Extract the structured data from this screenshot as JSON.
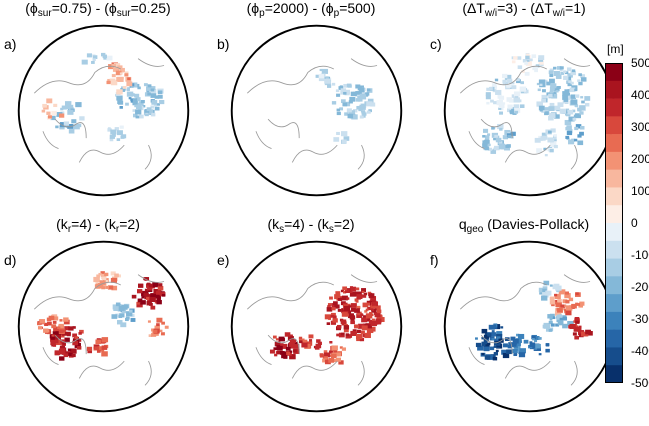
{
  "panels": [
    {
      "letter": "a)",
      "title": {
        "l1": "(ϕ",
        "s1": "sur",
        "m": "=0.75) - (ϕ",
        "s2": "sur",
        "r": "=0.25)"
      },
      "pattern": "a"
    },
    {
      "letter": "b)",
      "title": {
        "l1": "(ϕ",
        "s1": "p",
        "m": "=2000) - (ϕ",
        "s2": "p",
        "r": "=500)"
      },
      "pattern": "b"
    },
    {
      "letter": "c)",
      "title": {
        "l1": "(ΔT",
        "s1": "w/i",
        "m": "=3) - (ΔT",
        "s2": "w/i",
        "r": "=1)"
      },
      "pattern": "c"
    },
    {
      "letter": "d)",
      "title": {
        "l1": "(k",
        "s1": "r",
        "m": "=4) - (k",
        "s2": "r",
        "r": "=2)"
      },
      "pattern": "d"
    },
    {
      "letter": "e)",
      "title": {
        "l1": "(k",
        "s1": "s",
        "m": "=4) - (k",
        "s2": "s",
        "r": "=2)"
      },
      "pattern": "e"
    },
    {
      "letter": "f)",
      "title": {
        "l1": "q",
        "s1": "geo",
        "m": " (Davies-Pollack)",
        "s2": "",
        "r": ""
      },
      "pattern": "f"
    }
  ],
  "colorbar": {
    "unit": "[m]",
    "ticks": [
      "500",
      "400",
      "300",
      "200",
      "100",
      "0",
      "-100",
      "-200",
      "-300",
      "-400",
      "-500"
    ],
    "colors": [
      "#8b0016",
      "#a9141f",
      "#c0262b",
      "#d8483c",
      "#e86b52",
      "#f39274",
      "#f8b79e",
      "#fbd8c6",
      "#fdeee6",
      "#e8f1f8",
      "#cbe0ef",
      "#a8cde4",
      "#84b8d8",
      "#5e9ecb",
      "#3c82bb",
      "#2666a7",
      "#164d8c",
      "#08306b"
    ]
  }
}
